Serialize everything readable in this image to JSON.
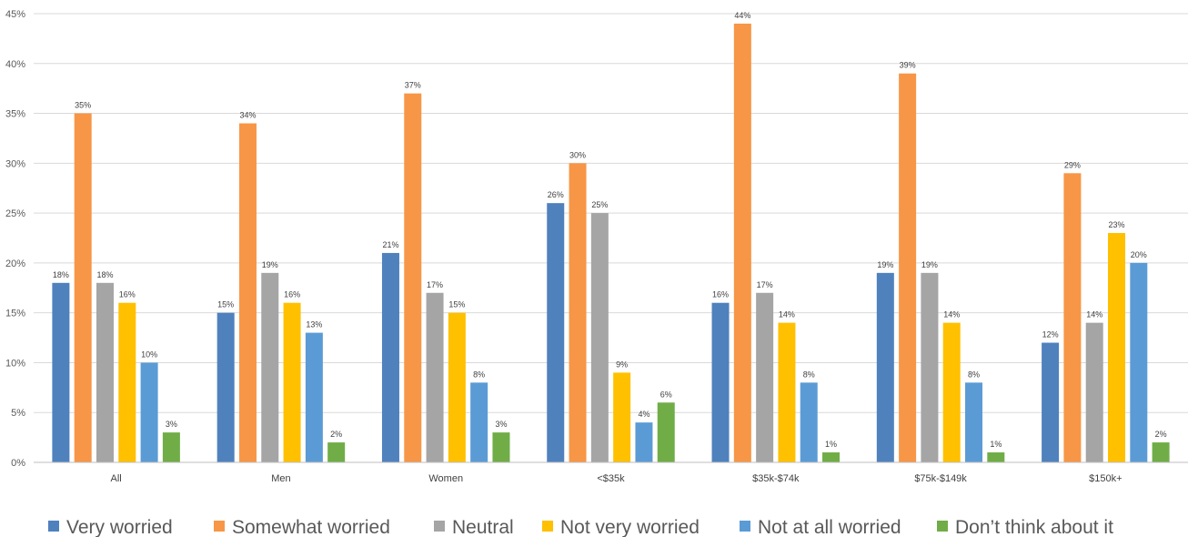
{
  "chart_data": {
    "type": "bar",
    "categories": [
      "All",
      "Men",
      "Women",
      "<$35k",
      "$35k-$74k",
      "$75k-$149k",
      "$150k+"
    ],
    "series": [
      {
        "name": "Very worried",
        "color": "#4f81bd",
        "values": [
          18,
          15,
          21,
          26,
          16,
          19,
          12
        ],
        "labels": [
          "18%",
          "15%",
          "21%",
          "26%",
          "16%",
          "19%",
          "12%"
        ]
      },
      {
        "name": "Somewhat worried",
        "color": "#f79646",
        "values": [
          35,
          34,
          37,
          30,
          44,
          39,
          29
        ],
        "labels": [
          "35%",
          "34%",
          "37%",
          "30%",
          "44%",
          "39%",
          "29%"
        ]
      },
      {
        "name": "Neutral",
        "color": "#a5a5a5",
        "values": [
          18,
          19,
          17,
          25,
          17,
          19,
          14
        ],
        "labels": [
          "18%",
          "19%",
          "17%",
          "25%",
          "17%",
          "19%",
          "14%"
        ]
      },
      {
        "name": "Not very worried",
        "color": "#ffc000",
        "values": [
          16,
          16,
          15,
          9,
          14,
          14,
          23
        ],
        "labels": [
          "16%",
          "16%",
          "15%",
          "9%",
          "14%",
          "14%",
          "23%"
        ]
      },
      {
        "name": "Not at all worried",
        "color": "#5b9bd5",
        "values": [
          10,
          13,
          8,
          4,
          8,
          8,
          20
        ],
        "labels": [
          "10%",
          "13%",
          "8%",
          "4%",
          "8%",
          "8%",
          "20%"
        ]
      },
      {
        "name": "Don’t think about it",
        "color": "#70ad47",
        "values": [
          3,
          2,
          3,
          6,
          1,
          1,
          2
        ],
        "labels": [
          "3%",
          "2%",
          "3%",
          "6%",
          "1%",
          "1%",
          "2%"
        ]
      }
    ],
    "ylim": [
      0,
      45
    ],
    "yticks": [
      0,
      5,
      10,
      15,
      20,
      25,
      30,
      35,
      40,
      45
    ],
    "ytick_labels": [
      "0%",
      "5%",
      "10%",
      "15%",
      "20%",
      "25%",
      "30%",
      "35%",
      "40%",
      "45%"
    ],
    "grid": true,
    "legend_position": "bottom",
    "title": "",
    "xlabel": "",
    "ylabel": ""
  }
}
